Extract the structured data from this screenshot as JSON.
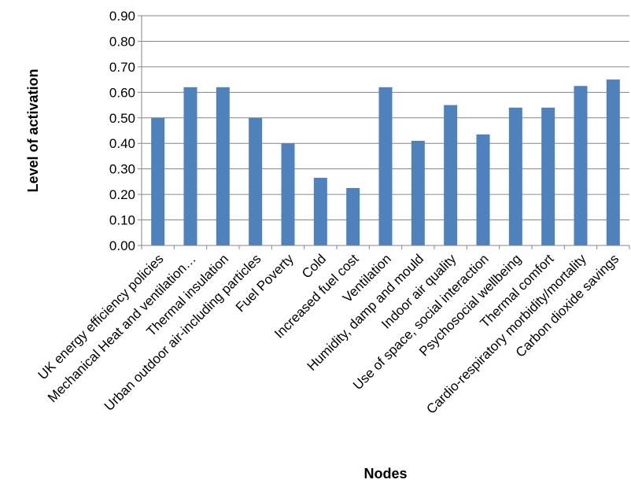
{
  "chart_data": {
    "type": "bar",
    "title": "",
    "xlabel": "Nodes",
    "ylabel": "Level of activation",
    "ylim": [
      0,
      0.9
    ],
    "ytick_step": 0.1,
    "ytick_labels": [
      "0.00",
      "0.10",
      "0.20",
      "0.30",
      "0.40",
      "0.50",
      "0.60",
      "0.70",
      "0.80",
      "0.90"
    ],
    "grid": true,
    "legend": "none",
    "bar_color": "#4F81BD",
    "categories": [
      "UK energy efficiency policies",
      "Mechanical Heat and ventilation…",
      "Thermal insulation",
      "Urban outdoor air-including particles",
      "Fuel Poverty",
      "Cold",
      "Increased fuel cost",
      "Ventilation",
      "Humidity, damp and mould",
      "Indoor air quality",
      "Use of space, social interaction",
      "Psychosocial wellbeing",
      "Thermal comfort",
      "Cardio-respiratory morbidity/mortality",
      "Carbon dioxide savings"
    ],
    "values": [
      0.5,
      0.62,
      0.62,
      0.5,
      0.4,
      0.265,
      0.225,
      0.62,
      0.41,
      0.55,
      0.435,
      0.54,
      0.54,
      0.625,
      0.65
    ]
  }
}
